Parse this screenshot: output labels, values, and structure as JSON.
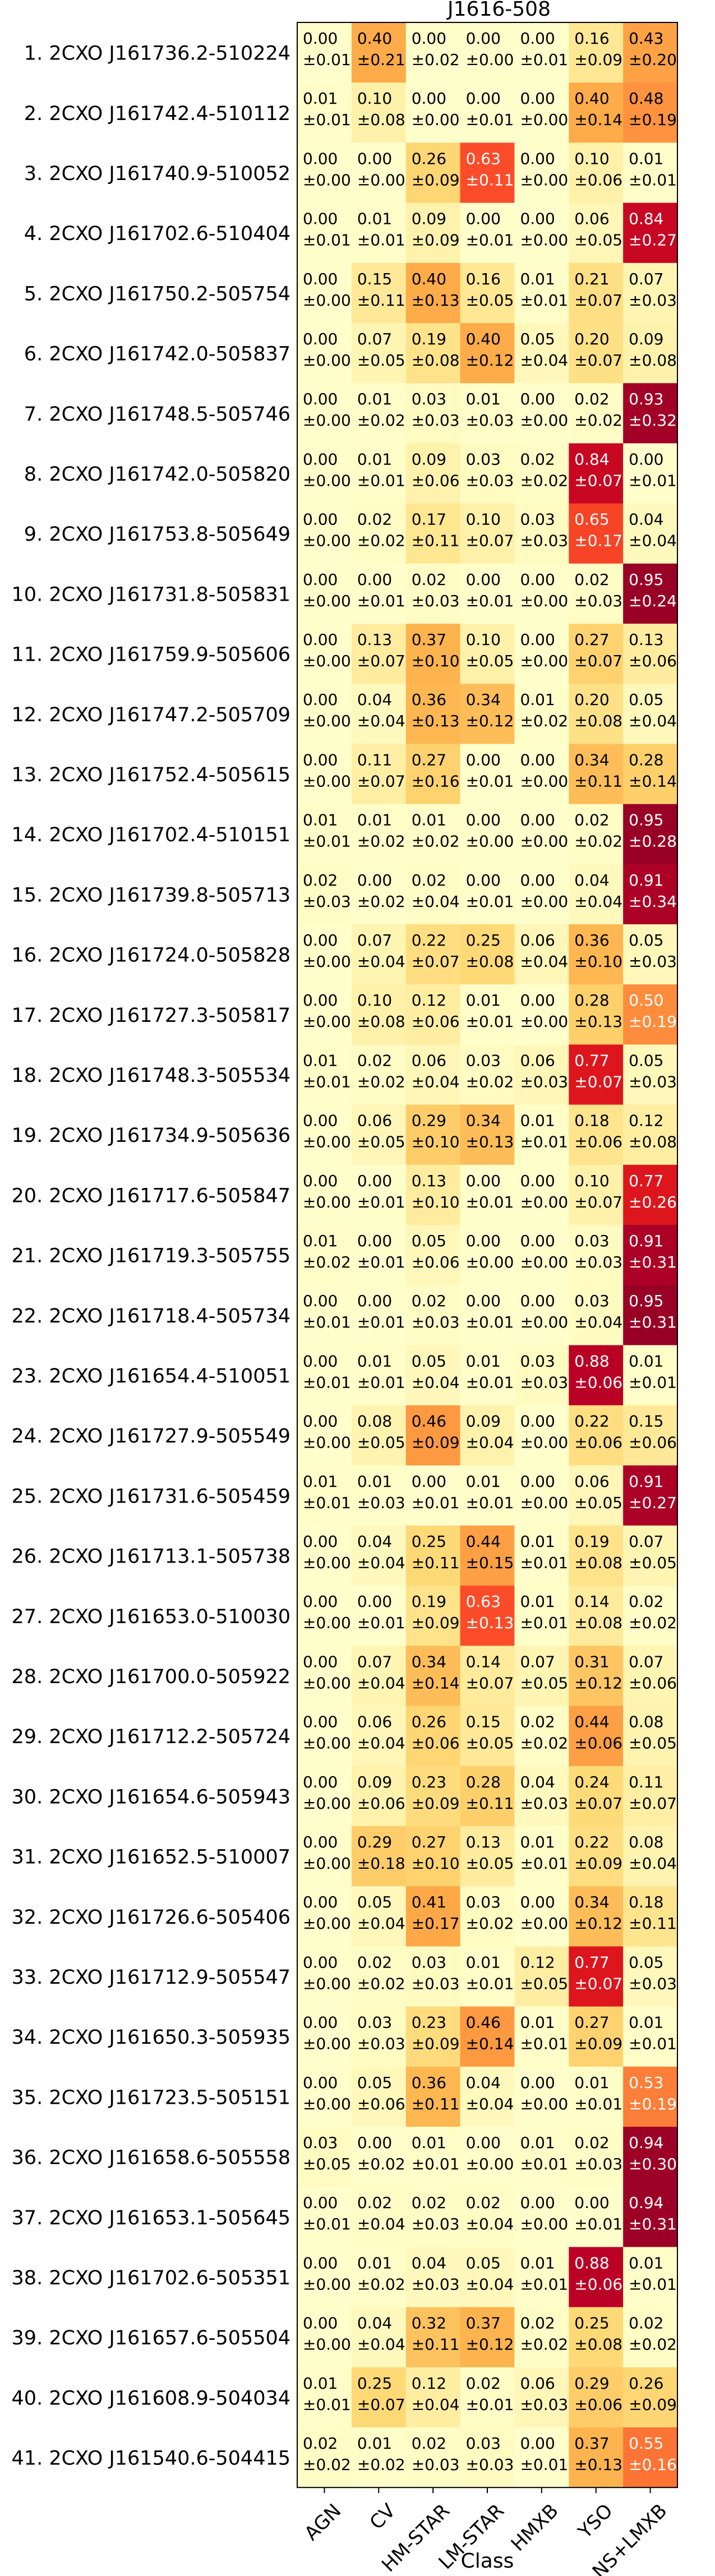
{
  "chart_data": {
    "type": "heatmap",
    "title": "J1616-508",
    "xlabel": "Class",
    "ylabel": "",
    "columns": [
      "AGN",
      "CV",
      "HM-STAR",
      "LM-STAR",
      "HMXB",
      "YSO",
      "NS+LMXB"
    ],
    "rows": [
      {
        "label": "1. 2CXO J161736.2-510224",
        "values": [
          0.0,
          0.4,
          0.0,
          0.0,
          0.0,
          0.16,
          0.43
        ],
        "errors": [
          0.01,
          0.21,
          0.02,
          0.0,
          0.01,
          0.09,
          0.2
        ]
      },
      {
        "label": "2. 2CXO J161742.4-510112",
        "values": [
          0.01,
          0.1,
          0.0,
          0.0,
          0.0,
          0.4,
          0.48
        ],
        "errors": [
          0.01,
          0.08,
          0.0,
          0.01,
          0.0,
          0.14,
          0.19
        ]
      },
      {
        "label": "3. 2CXO J161740.9-510052",
        "values": [
          0.0,
          0.0,
          0.26,
          0.63,
          0.0,
          0.1,
          0.01
        ],
        "errors": [
          0.0,
          0.0,
          0.09,
          0.11,
          0.0,
          0.06,
          0.01
        ]
      },
      {
        "label": "4. 2CXO J161702.6-510404",
        "values": [
          0.0,
          0.01,
          0.09,
          0.0,
          0.0,
          0.06,
          0.84
        ],
        "errors": [
          0.01,
          0.01,
          0.09,
          0.01,
          0.0,
          0.05,
          0.27
        ]
      },
      {
        "label": "5. 2CXO J161750.2-505754",
        "values": [
          0.0,
          0.15,
          0.4,
          0.16,
          0.01,
          0.21,
          0.07
        ],
        "errors": [
          0.0,
          0.11,
          0.13,
          0.05,
          0.01,
          0.07,
          0.03
        ]
      },
      {
        "label": "6. 2CXO J161742.0-505837",
        "values": [
          0.0,
          0.07,
          0.19,
          0.4,
          0.05,
          0.2,
          0.09
        ],
        "errors": [
          0.0,
          0.05,
          0.08,
          0.12,
          0.04,
          0.07,
          0.08
        ]
      },
      {
        "label": "7. 2CXO J161748.5-505746",
        "values": [
          0.0,
          0.01,
          0.03,
          0.01,
          0.0,
          0.02,
          0.93
        ],
        "errors": [
          0.0,
          0.02,
          0.03,
          0.03,
          0.0,
          0.02,
          0.32
        ]
      },
      {
        "label": "8. 2CXO J161742.0-505820",
        "values": [
          0.0,
          0.01,
          0.09,
          0.03,
          0.02,
          0.84,
          0.0
        ],
        "errors": [
          0.0,
          0.01,
          0.06,
          0.03,
          0.02,
          0.07,
          0.01
        ]
      },
      {
        "label": "9. 2CXO J161753.8-505649",
        "values": [
          0.0,
          0.02,
          0.17,
          0.1,
          0.03,
          0.65,
          0.04
        ],
        "errors": [
          0.0,
          0.02,
          0.11,
          0.07,
          0.03,
          0.17,
          0.04
        ]
      },
      {
        "label": "10. 2CXO J161731.8-505831",
        "values": [
          0.0,
          0.0,
          0.02,
          0.0,
          0.0,
          0.02,
          0.95
        ],
        "errors": [
          0.0,
          0.01,
          0.03,
          0.01,
          0.0,
          0.03,
          0.24
        ]
      },
      {
        "label": "11. 2CXO J161759.9-505606",
        "values": [
          0.0,
          0.13,
          0.37,
          0.1,
          0.0,
          0.27,
          0.13
        ],
        "errors": [
          0.0,
          0.07,
          0.1,
          0.05,
          0.0,
          0.07,
          0.06
        ]
      },
      {
        "label": "12. 2CXO J161747.2-505709",
        "values": [
          0.0,
          0.04,
          0.36,
          0.34,
          0.01,
          0.2,
          0.05
        ],
        "errors": [
          0.0,
          0.04,
          0.13,
          0.12,
          0.02,
          0.08,
          0.04
        ]
      },
      {
        "label": "13. 2CXO J161752.4-505615",
        "values": [
          0.0,
          0.11,
          0.27,
          0.0,
          0.0,
          0.34,
          0.28
        ],
        "errors": [
          0.0,
          0.07,
          0.16,
          0.01,
          0.0,
          0.11,
          0.14
        ]
      },
      {
        "label": "14. 2CXO J161702.4-510151",
        "values": [
          0.01,
          0.01,
          0.01,
          0.0,
          0.0,
          0.02,
          0.95
        ],
        "errors": [
          0.01,
          0.02,
          0.02,
          0.0,
          0.0,
          0.02,
          0.28
        ]
      },
      {
        "label": "15. 2CXO J161739.8-505713",
        "values": [
          0.02,
          0.0,
          0.02,
          0.0,
          0.0,
          0.04,
          0.91
        ],
        "errors": [
          0.03,
          0.02,
          0.04,
          0.01,
          0.0,
          0.04,
          0.34
        ]
      },
      {
        "label": "16. 2CXO J161724.0-505828",
        "values": [
          0.0,
          0.07,
          0.22,
          0.25,
          0.06,
          0.36,
          0.05
        ],
        "errors": [
          0.0,
          0.04,
          0.07,
          0.08,
          0.04,
          0.1,
          0.03
        ]
      },
      {
        "label": "17. 2CXO J161727.3-505817",
        "values": [
          0.0,
          0.1,
          0.12,
          0.01,
          0.0,
          0.28,
          0.5
        ],
        "errors": [
          0.0,
          0.08,
          0.06,
          0.01,
          0.0,
          0.13,
          0.19
        ]
      },
      {
        "label": "18. 2CXO J161748.3-505534",
        "values": [
          0.01,
          0.02,
          0.06,
          0.03,
          0.06,
          0.77,
          0.05
        ],
        "errors": [
          0.01,
          0.02,
          0.04,
          0.02,
          0.03,
          0.07,
          0.03
        ]
      },
      {
        "label": "19. 2CXO J161734.9-505636",
        "values": [
          0.0,
          0.06,
          0.29,
          0.34,
          0.01,
          0.18,
          0.12
        ],
        "errors": [
          0.0,
          0.05,
          0.1,
          0.13,
          0.01,
          0.06,
          0.08
        ]
      },
      {
        "label": "20. 2CXO J161717.6-505847",
        "values": [
          0.0,
          0.0,
          0.13,
          0.0,
          0.0,
          0.1,
          0.77
        ],
        "errors": [
          0.0,
          0.01,
          0.1,
          0.01,
          0.0,
          0.07,
          0.26
        ]
      },
      {
        "label": "21. 2CXO J161719.3-505755",
        "values": [
          0.01,
          0.0,
          0.05,
          0.0,
          0.0,
          0.03,
          0.91
        ],
        "errors": [
          0.02,
          0.01,
          0.06,
          0.0,
          0.0,
          0.03,
          0.31
        ]
      },
      {
        "label": "22. 2CXO J161718.4-505734",
        "values": [
          0.0,
          0.0,
          0.02,
          0.0,
          0.0,
          0.03,
          0.95
        ],
        "errors": [
          0.01,
          0.01,
          0.03,
          0.01,
          0.0,
          0.04,
          0.31
        ]
      },
      {
        "label": "23. 2CXO J161654.4-510051",
        "values": [
          0.0,
          0.01,
          0.05,
          0.01,
          0.03,
          0.88,
          0.01
        ],
        "errors": [
          0.01,
          0.01,
          0.04,
          0.01,
          0.03,
          0.06,
          0.01
        ]
      },
      {
        "label": "24. 2CXO J161727.9-505549",
        "values": [
          0.0,
          0.08,
          0.46,
          0.09,
          0.0,
          0.22,
          0.15
        ],
        "errors": [
          0.0,
          0.05,
          0.09,
          0.04,
          0.0,
          0.06,
          0.06
        ]
      },
      {
        "label": "25. 2CXO J161731.6-505459",
        "values": [
          0.01,
          0.01,
          0.0,
          0.01,
          0.0,
          0.06,
          0.91
        ],
        "errors": [
          0.01,
          0.03,
          0.01,
          0.01,
          0.0,
          0.05,
          0.27
        ]
      },
      {
        "label": "26. 2CXO J161713.1-505738",
        "values": [
          0.0,
          0.04,
          0.25,
          0.44,
          0.01,
          0.19,
          0.07
        ],
        "errors": [
          0.0,
          0.04,
          0.11,
          0.15,
          0.01,
          0.08,
          0.05
        ]
      },
      {
        "label": "27. 2CXO J161653.0-510030",
        "values": [
          0.0,
          0.0,
          0.19,
          0.63,
          0.01,
          0.14,
          0.02
        ],
        "errors": [
          0.0,
          0.01,
          0.09,
          0.13,
          0.01,
          0.08,
          0.02
        ]
      },
      {
        "label": "28. 2CXO J161700.0-505922",
        "values": [
          0.0,
          0.07,
          0.34,
          0.14,
          0.07,
          0.31,
          0.07
        ],
        "errors": [
          0.0,
          0.04,
          0.14,
          0.07,
          0.05,
          0.12,
          0.06
        ]
      },
      {
        "label": "29. 2CXO J161712.2-505724",
        "values": [
          0.0,
          0.06,
          0.26,
          0.15,
          0.02,
          0.44,
          0.08
        ],
        "errors": [
          0.0,
          0.04,
          0.06,
          0.05,
          0.02,
          0.06,
          0.05
        ]
      },
      {
        "label": "30. 2CXO J161654.6-505943",
        "values": [
          0.0,
          0.09,
          0.23,
          0.28,
          0.04,
          0.24,
          0.11
        ],
        "errors": [
          0.0,
          0.06,
          0.09,
          0.11,
          0.03,
          0.07,
          0.07
        ]
      },
      {
        "label": "31. 2CXO J161652.5-510007",
        "values": [
          0.0,
          0.29,
          0.27,
          0.13,
          0.01,
          0.22,
          0.08
        ],
        "errors": [
          0.0,
          0.18,
          0.1,
          0.05,
          0.01,
          0.09,
          0.04
        ]
      },
      {
        "label": "32. 2CXO J161726.6-505406",
        "values": [
          0.0,
          0.05,
          0.41,
          0.03,
          0.0,
          0.34,
          0.18
        ],
        "errors": [
          0.0,
          0.04,
          0.17,
          0.02,
          0.0,
          0.12,
          0.11
        ]
      },
      {
        "label": "33. 2CXO J161712.9-505547",
        "values": [
          0.0,
          0.02,
          0.03,
          0.01,
          0.12,
          0.77,
          0.05
        ],
        "errors": [
          0.0,
          0.02,
          0.03,
          0.01,
          0.05,
          0.07,
          0.03
        ]
      },
      {
        "label": "34. 2CXO J161650.3-505935",
        "values": [
          0.0,
          0.03,
          0.23,
          0.46,
          0.01,
          0.27,
          0.01
        ],
        "errors": [
          0.0,
          0.03,
          0.09,
          0.14,
          0.01,
          0.09,
          0.01
        ]
      },
      {
        "label": "35. 2CXO J161723.5-505151",
        "values": [
          0.0,
          0.05,
          0.36,
          0.04,
          0.0,
          0.01,
          0.53
        ],
        "errors": [
          0.0,
          0.06,
          0.11,
          0.04,
          0.0,
          0.01,
          0.19
        ]
      },
      {
        "label": "36. 2CXO J161658.6-505558",
        "values": [
          0.03,
          0.0,
          0.01,
          0.0,
          0.01,
          0.02,
          0.94
        ],
        "errors": [
          0.05,
          0.02,
          0.01,
          0.0,
          0.01,
          0.03,
          0.3
        ]
      },
      {
        "label": "37. 2CXO J161653.1-505645",
        "values": [
          0.0,
          0.02,
          0.02,
          0.02,
          0.0,
          0.0,
          0.94
        ],
        "errors": [
          0.01,
          0.04,
          0.03,
          0.04,
          0.0,
          0.01,
          0.31
        ]
      },
      {
        "label": "38. 2CXO J161702.6-505351",
        "values": [
          0.0,
          0.01,
          0.04,
          0.05,
          0.01,
          0.88,
          0.01
        ],
        "errors": [
          0.0,
          0.02,
          0.03,
          0.04,
          0.01,
          0.06,
          0.01
        ]
      },
      {
        "label": "39. 2CXO J161657.6-505504",
        "values": [
          0.0,
          0.04,
          0.32,
          0.37,
          0.02,
          0.25,
          0.02
        ],
        "errors": [
          0.0,
          0.04,
          0.11,
          0.12,
          0.02,
          0.08,
          0.02
        ]
      },
      {
        "label": "40. 2CXO J161608.9-504034",
        "values": [
          0.01,
          0.25,
          0.12,
          0.02,
          0.06,
          0.29,
          0.26
        ],
        "errors": [
          0.01,
          0.07,
          0.04,
          0.01,
          0.03,
          0.06,
          0.09
        ]
      },
      {
        "label": "41. 2CXO J161540.6-504415",
        "values": [
          0.02,
          0.01,
          0.02,
          0.03,
          0.0,
          0.37,
          0.55
        ],
        "errors": [
          0.02,
          0.02,
          0.03,
          0.03,
          0.01,
          0.13,
          0.16
        ]
      }
    ],
    "value_range": [
      0,
      1
    ],
    "colormap": [
      "#ffffcc",
      "#ffeda0",
      "#fed976",
      "#feb24c",
      "#fd8d3c",
      "#fc4e2a",
      "#e31a1c",
      "#bd0026",
      "#800026"
    ],
    "grid": false
  }
}
